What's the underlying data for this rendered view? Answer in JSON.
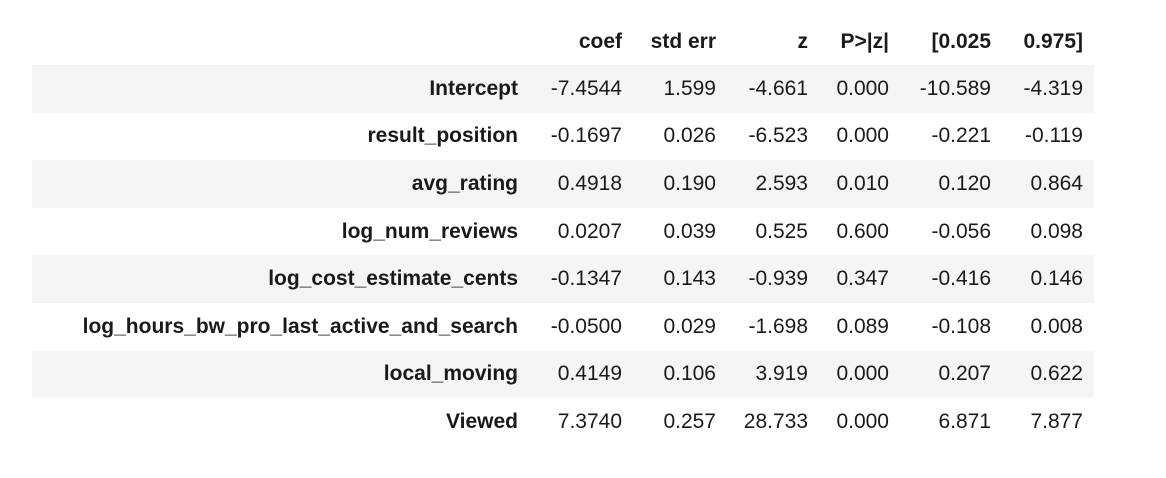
{
  "table": {
    "columns": [
      "",
      "coef",
      "std err",
      "z",
      "P>|z|",
      "[0.025",
      "0.975]"
    ],
    "rows": [
      {
        "label": "Intercept",
        "values": [
          "-7.4544",
          "1.599",
          "-4.661",
          "0.000",
          "-10.589",
          "-4.319"
        ]
      },
      {
        "label": "result_position",
        "values": [
          "-0.1697",
          "0.026",
          "-6.523",
          "0.000",
          "-0.221",
          "-0.119"
        ]
      },
      {
        "label": "avg_rating",
        "values": [
          "0.4918",
          "0.190",
          "2.593",
          "0.010",
          "0.120",
          "0.864"
        ]
      },
      {
        "label": "log_num_reviews",
        "values": [
          "0.0207",
          "0.039",
          "0.525",
          "0.600",
          "-0.056",
          "0.098"
        ]
      },
      {
        "label": "log_cost_estimate_cents",
        "values": [
          "-0.1347",
          "0.143",
          "-0.939",
          "0.347",
          "-0.416",
          "0.146"
        ]
      },
      {
        "label": "log_hours_bw_pro_last_active_and_search",
        "values": [
          "-0.0500",
          "0.029",
          "-1.698",
          "0.089",
          "-0.108",
          "0.008"
        ]
      },
      {
        "label": "local_moving",
        "values": [
          "0.4149",
          "0.106",
          "3.919",
          "0.000",
          "0.207",
          "0.622"
        ]
      },
      {
        "label": "Viewed",
        "values": [
          "7.3740",
          "0.257",
          "28.733",
          "0.000",
          "6.871",
          "7.877"
        ]
      }
    ]
  }
}
